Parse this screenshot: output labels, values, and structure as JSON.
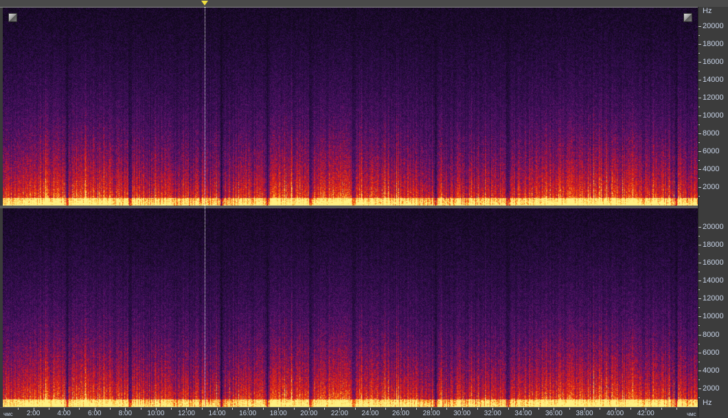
{
  "view": "spectral-frequency-display",
  "colors": {
    "low": "#10081a",
    "mid": "#5a1470",
    "hot": "#e01818",
    "peak": "#ffe870",
    "cursor": "#ffffff",
    "marker": "#f0e040"
  },
  "channels": [
    "left",
    "right"
  ],
  "frequency_axis": {
    "unit_label": "Hz",
    "ticks": [
      "20000",
      "18000",
      "16000",
      "14000",
      "12000",
      "10000",
      "8000",
      "6000",
      "4000",
      "2000"
    ],
    "tick_values": [
      20000,
      18000,
      16000,
      14000,
      12000,
      10000,
      8000,
      6000,
      4000,
      2000
    ],
    "max_hz": 22050
  },
  "time_axis": {
    "unit_label_left": "чмс",
    "unit_label_right": "чмс",
    "ticks": [
      "2:00",
      "4:00",
      "6:00",
      "8:00",
      "10:00",
      "12:00",
      "14:00",
      "16:00",
      "18:00",
      "20:00",
      "22:00",
      "24:00",
      "26:00",
      "28:00",
      "30:00",
      "32:00",
      "34:00",
      "36:00",
      "38:00",
      "40:00",
      "42:00"
    ],
    "tick_minutes": [
      2,
      4,
      6,
      8,
      10,
      12,
      14,
      16,
      18,
      20,
      22,
      24,
      26,
      28,
      30,
      32,
      34,
      36,
      38,
      40,
      42
    ],
    "duration_minutes": 45.4
  },
  "playhead_minutes": 13.2
}
